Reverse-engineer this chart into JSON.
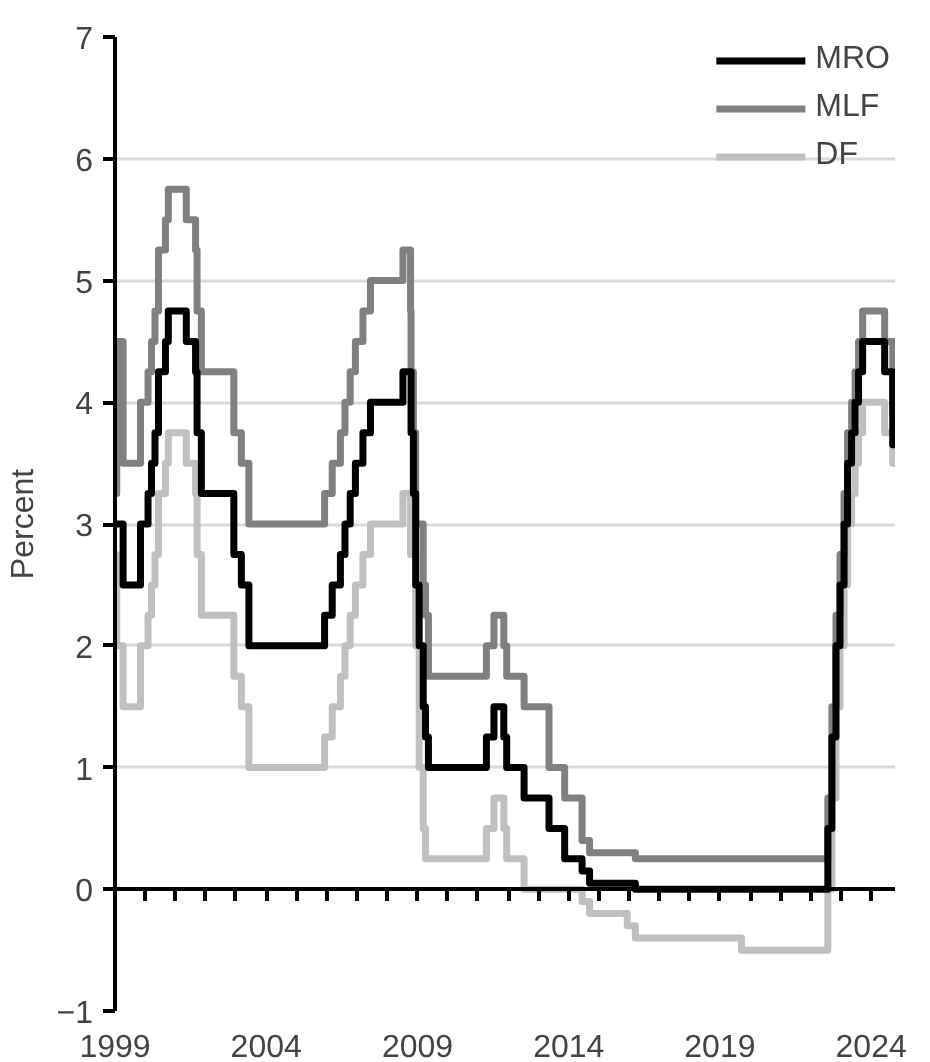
{
  "chart_data": {
    "type": "step",
    "ylabel": "Percent",
    "ylim": [
      -1,
      7
    ],
    "yticks": [
      -1,
      0,
      1,
      2,
      3,
      4,
      5,
      6,
      7
    ],
    "xlim": [
      "1999-01-01",
      "2024-10-15"
    ],
    "xticks": [
      {
        "value": "1999",
        "label": "1999"
      },
      {
        "value": "2000",
        "label": null
      },
      {
        "value": "2001",
        "label": null
      },
      {
        "value": "2002",
        "label": null
      },
      {
        "value": "2003",
        "label": null
      },
      {
        "value": "2004",
        "label": "2004"
      },
      {
        "value": "2005",
        "label": null
      },
      {
        "value": "2006",
        "label": null
      },
      {
        "value": "2007",
        "label": null
      },
      {
        "value": "2008",
        "label": null
      },
      {
        "value": "2009",
        "label": "2009"
      },
      {
        "value": "2010",
        "label": null
      },
      {
        "value": "2011",
        "label": null
      },
      {
        "value": "2012",
        "label": null
      },
      {
        "value": "2013",
        "label": null
      },
      {
        "value": "2014",
        "label": "2014"
      },
      {
        "value": "2015",
        "label": null
      },
      {
        "value": "2016",
        "label": null
      },
      {
        "value": "2017",
        "label": null
      },
      {
        "value": "2018",
        "label": null
      },
      {
        "value": "2019",
        "label": "2019"
      },
      {
        "value": "2020",
        "label": null
      },
      {
        "value": "2021",
        "label": null
      },
      {
        "value": "2022",
        "label": null
      },
      {
        "value": "2023",
        "label": null
      },
      {
        "value": "2024",
        "label": "2024"
      }
    ],
    "grid": "y",
    "legend": "top right",
    "line_style": "solid",
    "series": [
      {
        "name": "MRO",
        "color": "#000000",
        "x": [
          "1999-01-01",
          "1999-04-09",
          "1999-11-05",
          "2000-02-04",
          "2000-03-17",
          "2000-04-28",
          "2000-06-09",
          "2000-09-01",
          "2000-10-06",
          "2001-05-11",
          "2001-08-31",
          "2001-09-18",
          "2001-11-09",
          "2002-12-06",
          "2003-03-07",
          "2003-06-06",
          "2005-12-06",
          "2006-03-08",
          "2006-06-15",
          "2006-08-09",
          "2006-10-11",
          "2006-12-13",
          "2007-03-14",
          "2007-06-13",
          "2008-07-09",
          "2008-10-15",
          "2008-11-12",
          "2008-12-10",
          "2009-01-21",
          "2009-03-11",
          "2009-04-08",
          "2009-05-13",
          "2011-04-13",
          "2011-07-13",
          "2011-11-09",
          "2011-12-14",
          "2012-07-11",
          "2013-05-08",
          "2013-11-13",
          "2014-06-11",
          "2014-09-10",
          "2016-03-16",
          "2022-07-27",
          "2022-09-14",
          "2022-11-02",
          "2022-12-21",
          "2023-02-08",
          "2023-03-22",
          "2023-05-10",
          "2023-06-21",
          "2023-08-02",
          "2023-09-20",
          "2024-06-12",
          "2024-09-18",
          "2024-10-15"
        ],
        "values": [
          3.0,
          2.5,
          3.0,
          3.25,
          3.5,
          3.75,
          4.25,
          4.5,
          4.75,
          4.5,
          4.25,
          3.75,
          3.25,
          2.75,
          2.5,
          2.0,
          2.25,
          2.5,
          2.75,
          3.0,
          3.25,
          3.5,
          3.75,
          4.0,
          4.25,
          3.75,
          3.25,
          2.5,
          2.0,
          1.5,
          1.25,
          1.0,
          1.25,
          1.5,
          1.25,
          1.0,
          0.75,
          0.5,
          0.25,
          0.15,
          0.05,
          0.0,
          0.5,
          1.25,
          2.0,
          2.5,
          3.0,
          3.5,
          3.75,
          4.0,
          4.25,
          4.5,
          4.25,
          3.65,
          3.65
        ]
      },
      {
        "name": "MLF",
        "color": "#808080",
        "x": [
          "1999-01-01",
          "1999-01-04",
          "1999-01-22",
          "1999-04-09",
          "1999-11-05",
          "2000-02-04",
          "2000-03-17",
          "2000-04-28",
          "2000-06-09",
          "2000-09-01",
          "2000-10-06",
          "2001-05-11",
          "2001-08-31",
          "2001-09-18",
          "2001-11-09",
          "2002-12-06",
          "2003-03-07",
          "2003-06-06",
          "2005-12-06",
          "2006-03-08",
          "2006-06-15",
          "2006-08-09",
          "2006-10-11",
          "2006-12-13",
          "2007-03-14",
          "2007-06-13",
          "2008-07-09",
          "2008-10-09",
          "2008-10-15",
          "2008-11-12",
          "2008-12-10",
          "2009-03-11",
          "2009-04-08",
          "2009-05-13",
          "2011-04-13",
          "2011-07-13",
          "2011-11-09",
          "2011-12-14",
          "2012-07-11",
          "2013-05-08",
          "2013-11-13",
          "2014-06-11",
          "2014-09-10",
          "2016-03-16",
          "2022-07-27",
          "2022-09-14",
          "2022-11-02",
          "2022-12-21",
          "2023-02-08",
          "2023-03-22",
          "2023-05-10",
          "2023-06-21",
          "2023-08-02",
          "2023-09-20",
          "2024-06-12",
          "2024-09-18",
          "2024-10-15"
        ],
        "values": [
          4.5,
          3.25,
          4.5,
          3.5,
          4.0,
          4.25,
          4.5,
          4.75,
          5.25,
          5.5,
          5.75,
          5.5,
          5.25,
          4.75,
          4.25,
          3.75,
          3.5,
          3.0,
          3.25,
          3.5,
          3.75,
          4.0,
          4.25,
          4.5,
          4.75,
          5.0,
          5.25,
          4.75,
          4.25,
          3.75,
          3.0,
          2.5,
          2.25,
          1.75,
          2.0,
          2.25,
          2.0,
          1.75,
          1.5,
          1.0,
          0.75,
          0.4,
          0.3,
          0.25,
          0.75,
          1.5,
          2.25,
          2.75,
          3.25,
          3.75,
          4.0,
          4.25,
          4.5,
          4.75,
          4.5,
          3.9,
          3.9
        ]
      },
      {
        "name": "DF",
        "color": "#c0c0c0",
        "x": [
          "1999-01-01",
          "1999-01-04",
          "1999-01-22",
          "1999-04-09",
          "1999-11-05",
          "2000-02-04",
          "2000-03-17",
          "2000-04-28",
          "2000-06-09",
          "2000-09-01",
          "2000-10-06",
          "2001-05-11",
          "2001-08-31",
          "2001-09-18",
          "2001-11-09",
          "2002-12-06",
          "2003-03-07",
          "2003-06-06",
          "2005-12-06",
          "2006-03-08",
          "2006-06-15",
          "2006-08-09",
          "2006-10-11",
          "2006-12-13",
          "2007-03-14",
          "2007-06-13",
          "2008-07-09",
          "2008-10-09",
          "2008-10-15",
          "2008-11-12",
          "2008-12-10",
          "2009-01-21",
          "2009-03-11",
          "2009-04-08",
          "2011-04-13",
          "2011-07-13",
          "2011-11-09",
          "2011-12-14",
          "2012-07-11",
          "2014-06-11",
          "2014-09-10",
          "2015-12-09",
          "2016-03-16",
          "2019-09-18",
          "2022-07-27",
          "2022-09-14",
          "2022-11-02",
          "2022-12-21",
          "2023-02-08",
          "2023-03-22",
          "2023-05-10",
          "2023-06-21",
          "2023-08-02",
          "2023-09-20",
          "2024-06-12",
          "2024-09-18",
          "2024-10-15"
        ],
        "values": [
          2.0,
          2.75,
          2.0,
          1.5,
          2.0,
          2.25,
          2.5,
          2.75,
          3.25,
          3.5,
          3.75,
          3.5,
          3.25,
          2.75,
          2.25,
          1.75,
          1.5,
          1.0,
          1.25,
          1.5,
          1.75,
          2.0,
          2.25,
          2.5,
          2.75,
          3.0,
          3.25,
          2.75,
          3.25,
          2.75,
          2.0,
          1.0,
          0.5,
          0.25,
          0.5,
          0.75,
          0.5,
          0.25,
          0.0,
          -0.1,
          -0.2,
          -0.3,
          -0.4,
          -0.5,
          0.0,
          0.75,
          1.5,
          2.0,
          2.5,
          3.0,
          3.25,
          3.5,
          3.75,
          4.0,
          3.75,
          3.5,
          3.5
        ]
      }
    ]
  }
}
